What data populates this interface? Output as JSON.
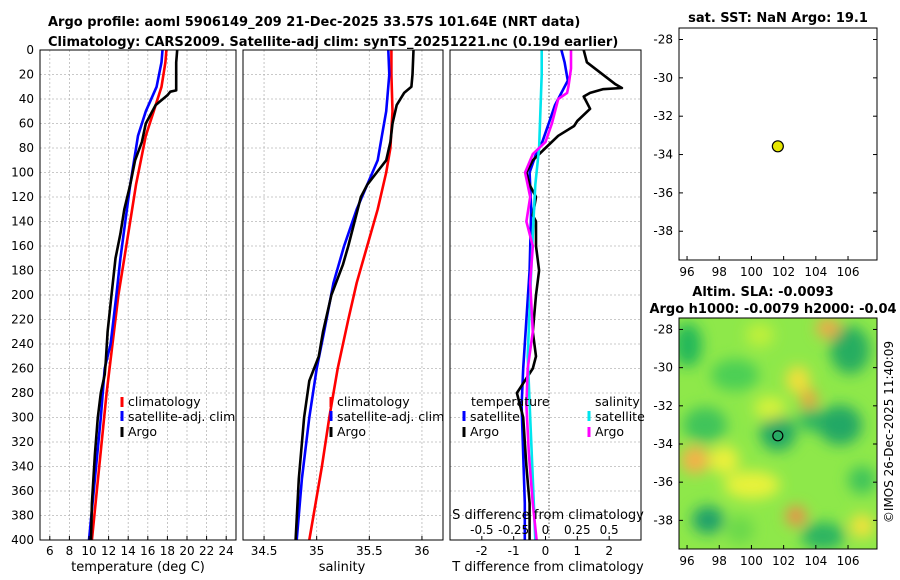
{
  "header": {
    "title_line1": "Argo profile: aoml 5906149_209 21-Dec-2025 33.57S 101.64E (NRT data)",
    "title_line2": "Climatology: CARS2009. Satellite-adj clim: synTS_20251221.nc (0.19d earlier)"
  },
  "colors": {
    "climatology": "#ff0000",
    "satellite": "#0000ff",
    "argo": "#000000",
    "satellite_s": "#00e5ee",
    "argo_s": "#ff00ff",
    "sst_marker": "#e6e600"
  },
  "depth_axis": {
    "ticks": [
      "0",
      "20",
      "40",
      "60",
      "80",
      "100",
      "120",
      "140",
      "160",
      "180",
      "200",
      "220",
      "240",
      "260",
      "280",
      "300",
      "320",
      "340",
      "360",
      "380",
      "400"
    ]
  },
  "chart_data": [
    {
      "type": "line",
      "panel": "temperature",
      "xlabel": "temperature (deg C)",
      "ylabel": "depth",
      "xlim": [
        5,
        25
      ],
      "ylim": [
        400,
        0
      ],
      "xticks": [
        "6",
        "8",
        "10",
        "12",
        "14",
        "16",
        "18",
        "20",
        "22",
        "24"
      ],
      "legend": [
        "climatology",
        "satellite-adj. clim",
        "Argo"
      ],
      "series": [
        {
          "name": "climatology",
          "color": "#ff0000",
          "points": [
            [
              17.9,
              0
            ],
            [
              17.8,
              10
            ],
            [
              17.4,
              30
            ],
            [
              16.6,
              50
            ],
            [
              15.8,
              70
            ],
            [
              15.3,
              90
            ],
            [
              14.8,
              110
            ],
            [
              14.2,
              140
            ],
            [
              13.6,
              170
            ],
            [
              13.0,
              200
            ],
            [
              12.4,
              240
            ],
            [
              11.8,
              280
            ],
            [
              11.3,
              320
            ],
            [
              10.8,
              360
            ],
            [
              10.3,
              400
            ]
          ]
        },
        {
          "name": "satellite-adj. clim",
          "color": "#0000ff",
          "points": [
            [
              17.5,
              0
            ],
            [
              17.4,
              10
            ],
            [
              16.9,
              30
            ],
            [
              15.8,
              50
            ],
            [
              15.0,
              70
            ],
            [
              14.6,
              90
            ],
            [
              14.2,
              110
            ],
            [
              13.7,
              140
            ],
            [
              13.2,
              170
            ],
            [
              12.8,
              200
            ],
            [
              12.2,
              240
            ],
            [
              11.6,
              260
            ],
            [
              11.2,
              300
            ],
            [
              10.6,
              350
            ],
            [
              10.0,
              400
            ]
          ]
        },
        {
          "name": "Argo",
          "color": "#000000",
          "points": [
            [
              19.0,
              0
            ],
            [
              18.9,
              10
            ],
            [
              18.9,
              20
            ],
            [
              18.9,
              33
            ],
            [
              18.3,
              34
            ],
            [
              18.0,
              37
            ],
            [
              16.8,
              45
            ],
            [
              15.8,
              60
            ],
            [
              15.4,
              75
            ],
            [
              14.7,
              90
            ],
            [
              14.2,
              110
            ],
            [
              13.6,
              130
            ],
            [
              13.2,
              150
            ],
            [
              12.7,
              170
            ],
            [
              12.3,
              200
            ],
            [
              11.9,
              230
            ],
            [
              11.7,
              255
            ],
            [
              11.6,
              265
            ],
            [
              11.2,
              280
            ],
            [
              10.9,
              300
            ],
            [
              10.6,
              330
            ],
            [
              10.3,
              370
            ],
            [
              10.2,
              400
            ]
          ]
        }
      ]
    },
    {
      "type": "line",
      "panel": "salinity",
      "xlabel": "salinity",
      "ylabel": "depth",
      "xlim": [
        34.3,
        36.2
      ],
      "ylim": [
        400,
        0
      ],
      "xticks": [
        "34.5",
        "35",
        "35.5",
        "36"
      ],
      "legend": [
        "climatology",
        "satellite-adj. clim",
        "Argo"
      ],
      "series": [
        {
          "name": "climatology",
          "color": "#ff0000",
          "points": [
            [
              35.71,
              0
            ],
            [
              35.71,
              20
            ],
            [
              35.72,
              50
            ],
            [
              35.7,
              80
            ],
            [
              35.66,
              100
            ],
            [
              35.58,
              130
            ],
            [
              35.48,
              160
            ],
            [
              35.38,
              190
            ],
            [
              35.3,
              220
            ],
            [
              35.2,
              260
            ],
            [
              35.12,
              300
            ],
            [
              35.05,
              340
            ],
            [
              34.97,
              380
            ],
            [
              34.93,
              400
            ]
          ]
        },
        {
          "name": "satellite-adj. clim",
          "color": "#0000ff",
          "points": [
            [
              35.68,
              0
            ],
            [
              35.69,
              20
            ],
            [
              35.66,
              50
            ],
            [
              35.62,
              70
            ],
            [
              35.58,
              90
            ],
            [
              35.48,
              110
            ],
            [
              35.38,
              130
            ],
            [
              35.26,
              160
            ],
            [
              35.16,
              190
            ],
            [
              35.07,
              230
            ],
            [
              35.0,
              260
            ],
            [
              34.93,
              300
            ],
            [
              34.86,
              350
            ],
            [
              34.81,
              400
            ]
          ]
        },
        {
          "name": "Argo",
          "color": "#000000",
          "points": [
            [
              35.92,
              0
            ],
            [
              35.91,
              20
            ],
            [
              35.9,
              30
            ],
            [
              35.83,
              35
            ],
            [
              35.76,
              45
            ],
            [
              35.72,
              60
            ],
            [
              35.7,
              75
            ],
            [
              35.66,
              90
            ],
            [
              35.57,
              100
            ],
            [
              35.48,
              110
            ],
            [
              35.42,
              120
            ],
            [
              35.36,
              140
            ],
            [
              35.3,
              160
            ],
            [
              35.25,
              175
            ],
            [
              35.14,
              200
            ],
            [
              35.06,
              230
            ],
            [
              35.02,
              250
            ],
            [
              34.93,
              270
            ],
            [
              34.88,
              300
            ],
            [
              34.83,
              350
            ],
            [
              34.8,
              400
            ]
          ]
        }
      ]
    },
    {
      "type": "line",
      "panel": "difference",
      "xlabel": "T difference from climatology",
      "x2label": "S difference from climatology",
      "ylabel": "depth",
      "xlim": [
        -3,
        3
      ],
      "x2lim": [
        -0.75,
        0.75
      ],
      "ylim": [
        400,
        0
      ],
      "xticks": [
        "-2",
        "-1",
        "0",
        "1",
        "2"
      ],
      "x2ticks": [
        "-0.5",
        "-0.25",
        "0",
        "0.25",
        "0.5"
      ],
      "legend_temperature_title": "temperature",
      "legend_salinity_title": "salinity",
      "legend_temperature": [
        "satellite",
        "Argo"
      ],
      "legend_salinity": [
        "satellite",
        "Argo"
      ],
      "series": [
        {
          "name": "temperature satellite",
          "color": "#0000ff",
          "axis": "T",
          "points": [
            [
              0.5,
              0
            ],
            [
              0.6,
              10
            ],
            [
              0.7,
              25
            ],
            [
              0.3,
              45
            ],
            [
              0.1,
              60
            ],
            [
              -0.1,
              75
            ],
            [
              -0.3,
              85
            ],
            [
              -0.5,
              100
            ],
            [
              -0.45,
              130
            ],
            [
              -0.5,
              180
            ],
            [
              -0.6,
              220
            ],
            [
              -0.7,
              260
            ],
            [
              -0.75,
              290
            ],
            [
              -0.7,
              330
            ],
            [
              -0.65,
              370
            ],
            [
              -0.65,
              400
            ]
          ]
        },
        {
          "name": "temperature Argo",
          "color": "#000000",
          "axis": "T",
          "points": [
            [
              1.2,
              0
            ],
            [
              1.3,
              10
            ],
            [
              2.2,
              28
            ],
            [
              2.4,
              31
            ],
            [
              1.8,
              32
            ],
            [
              1.4,
              35
            ],
            [
              1.2,
              38
            ],
            [
              1.4,
              48
            ],
            [
              1.0,
              58
            ],
            [
              0.9,
              62
            ],
            [
              0.4,
              70
            ],
            [
              0.0,
              80
            ],
            [
              -0.4,
              90
            ],
            [
              -0.6,
              100
            ],
            [
              -0.5,
              110
            ],
            [
              -0.3,
              120
            ],
            [
              -0.4,
              135
            ],
            [
              -0.3,
              140
            ],
            [
              -0.3,
              160
            ],
            [
              -0.2,
              180
            ],
            [
              -0.3,
              200
            ],
            [
              -0.4,
              230
            ],
            [
              -0.3,
              250
            ],
            [
              -0.4,
              260
            ],
            [
              -0.9,
              280
            ],
            [
              -0.7,
              300
            ],
            [
              -0.6,
              340
            ],
            [
              -0.5,
              370
            ],
            [
              -0.5,
              400
            ]
          ]
        },
        {
          "name": "salinity satellite",
          "color": "#00e5ee",
          "axis": "S",
          "points": [
            [
              -0.03,
              0
            ],
            [
              -0.03,
              20
            ],
            [
              -0.04,
              50
            ],
            [
              -0.05,
              80
            ],
            [
              -0.08,
              110
            ],
            [
              -0.1,
              150
            ],
            [
              -0.12,
              200
            ],
            [
              -0.14,
              250
            ],
            [
              -0.12,
              300
            ],
            [
              -0.1,
              350
            ],
            [
              -0.08,
              400
            ]
          ]
        },
        {
          "name": "salinity Argo",
          "color": "#ff00ff",
          "axis": "S",
          "points": [
            [
              0.2,
              0
            ],
            [
              0.2,
              15
            ],
            [
              0.18,
              30
            ],
            [
              0.17,
              35
            ],
            [
              0.1,
              40
            ],
            [
              0.05,
              60
            ],
            [
              0.0,
              75
            ],
            [
              -0.1,
              85
            ],
            [
              -0.16,
              100
            ],
            [
              -0.12,
              120
            ],
            [
              -0.15,
              140
            ],
            [
              -0.1,
              160
            ],
            [
              -0.12,
              190
            ],
            [
              -0.1,
              230
            ],
            [
              -0.14,
              260
            ],
            [
              -0.15,
              290
            ],
            [
              -0.13,
              330
            ],
            [
              -0.1,
              370
            ],
            [
              -0.07,
              400
            ]
          ]
        }
      ]
    },
    {
      "type": "scatter",
      "panel": "sst_map",
      "title": "sat. SST: NaN Argo: 19.1",
      "xlim": [
        95.5,
        107.8
      ],
      "ylim": [
        -39.5,
        -27.4
      ],
      "xticks": [
        "96",
        "98",
        "100",
        "102",
        "104",
        "106"
      ],
      "yticks": [
        "-28",
        "-30",
        "-32",
        "-34",
        "-36",
        "-38"
      ],
      "points": [
        {
          "lon": 101.64,
          "lat": -33.57
        }
      ]
    },
    {
      "type": "heatmap",
      "panel": "sla_map",
      "title_line1": "Altim. SLA: -0.0093",
      "title_line2": "Argo h1000: -0.0079 h2000: -0.04",
      "xlim": [
        95.5,
        107.8
      ],
      "ylim": [
        -39.5,
        -27.4
      ],
      "xticks": [
        "96",
        "98",
        "100",
        "102",
        "104",
        "106"
      ],
      "yticks": [
        "-28",
        "-30",
        "-32",
        "-34",
        "-36",
        "-38"
      ],
      "marker": {
        "lon": 101.64,
        "lat": -33.57
      }
    }
  ],
  "credit": "©IMOS 26-Dec-2025 11:40:09"
}
